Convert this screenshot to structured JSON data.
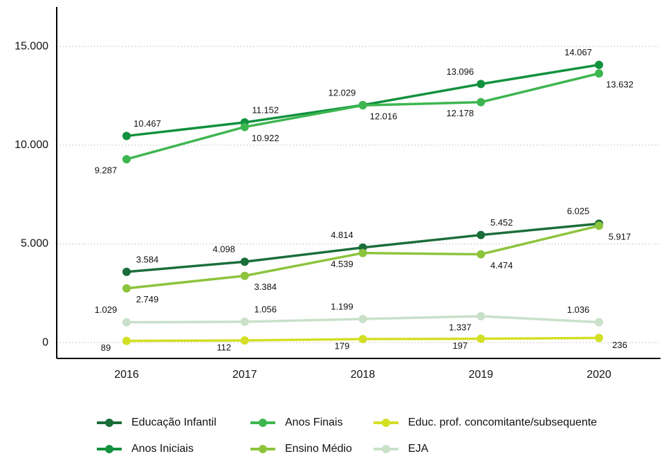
{
  "chart_data": {
    "type": "line",
    "categories": [
      "2016",
      "2017",
      "2018",
      "2019",
      "2020"
    ],
    "series": [
      {
        "name": "Educação Infantil",
        "color": "#1b6e3a",
        "values": [
          3584,
          4098,
          4814,
          5452,
          6025
        ],
        "value_labels": [
          "3.584",
          "4.098",
          "4.814",
          "5.452",
          "6.025"
        ]
      },
      {
        "name": "Anos Iniciais",
        "color": "#12913f",
        "values": [
          10467,
          11152,
          12029,
          13096,
          14067
        ],
        "value_labels": [
          "10.467",
          "11.152",
          "12.029",
          "13.096",
          "14.067"
        ]
      },
      {
        "name": "Anos Finais",
        "color": "#3db650",
        "values": [
          9287,
          10922,
          12016,
          12178,
          13632
        ],
        "value_labels": [
          "9.287",
          "10.922",
          "12.016",
          "12.178",
          "13.632"
        ]
      },
      {
        "name": "Ensino Médio",
        "color": "#8cc43c",
        "values": [
          2749,
          3384,
          4539,
          4474,
          5917
        ],
        "value_labels": [
          "2.749",
          "3.384",
          "4.539",
          "4.474",
          "5.917"
        ]
      },
      {
        "name": "Educ. prof. concomitante/subsequente",
        "color": "#d3df24",
        "values": [
          89,
          112,
          179,
          197,
          236
        ],
        "value_labels": [
          "89",
          "112",
          "179",
          "197",
          "236"
        ]
      },
      {
        "name": "EJA",
        "color": "#c9e0c9",
        "values": [
          1029,
          1056,
          1199,
          1337,
          1036
        ],
        "value_labels": [
          "1.029",
          "1.056",
          "1.199",
          "1.337",
          "1.036"
        ]
      }
    ],
    "ylim": [
      -800,
      17000
    ],
    "yticks": [
      0,
      {
        "value": 5000,
        "label": "5.000"
      },
      {
        "value": 10000,
        "label": "10.000"
      },
      {
        "value": 15000,
        "label": "15.000"
      }
    ],
    "grid": true
  }
}
